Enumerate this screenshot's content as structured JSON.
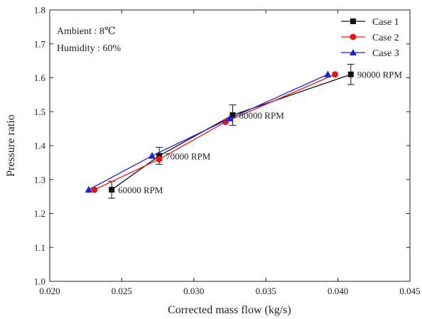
{
  "chart_data": {
    "type": "line",
    "xlabel": "Corrected mass flow (kg/s)",
    "ylabel": "Pressure ratio",
    "xlim": [
      0.02,
      0.045
    ],
    "ylim": [
      1.0,
      1.8
    ],
    "xticks": [
      "0.020",
      "0.025",
      "0.030",
      "0.035",
      "0.040",
      "0.045"
    ],
    "yticks": [
      "1.0",
      "1.1",
      "1.2",
      "1.3",
      "1.4",
      "1.5",
      "1.6",
      "1.7",
      "1.8"
    ],
    "grid": false,
    "legend_position": "top-right",
    "annotations": [
      "Ambient : 8℃",
      "Humidity : 60%"
    ],
    "point_labels": [
      {
        "text": "60000 RPM",
        "x": 0.0243,
        "y": 1.27
      },
      {
        "text": "70000 RPM",
        "x": 0.0276,
        "y": 1.37
      },
      {
        "text": "80000 RPM",
        "x": 0.0327,
        "y": 1.49
      },
      {
        "text": "90000 RPM",
        "x": 0.0409,
        "y": 1.61
      }
    ],
    "series": [
      {
        "name": "Case 1",
        "color": "#111111",
        "marker": "square",
        "x": [
          0.0243,
          0.0276,
          0.0327,
          0.0409
        ],
        "y": [
          1.27,
          1.37,
          1.49,
          1.61
        ],
        "yerr": [
          0.025,
          0.025,
          0.03,
          0.03
        ]
      },
      {
        "name": "Case 2",
        "color": "#e8161b",
        "marker": "circle",
        "x": [
          0.0231,
          0.0276,
          0.0322,
          0.0398
        ],
        "y": [
          1.27,
          1.36,
          1.47,
          1.61
        ]
      },
      {
        "name": "Case 3",
        "color": "#1e22d6",
        "marker": "triangle",
        "x": [
          0.0227,
          0.0271,
          0.0325,
          0.0393
        ],
        "y": [
          1.27,
          1.37,
          1.48,
          1.61
        ]
      }
    ]
  }
}
